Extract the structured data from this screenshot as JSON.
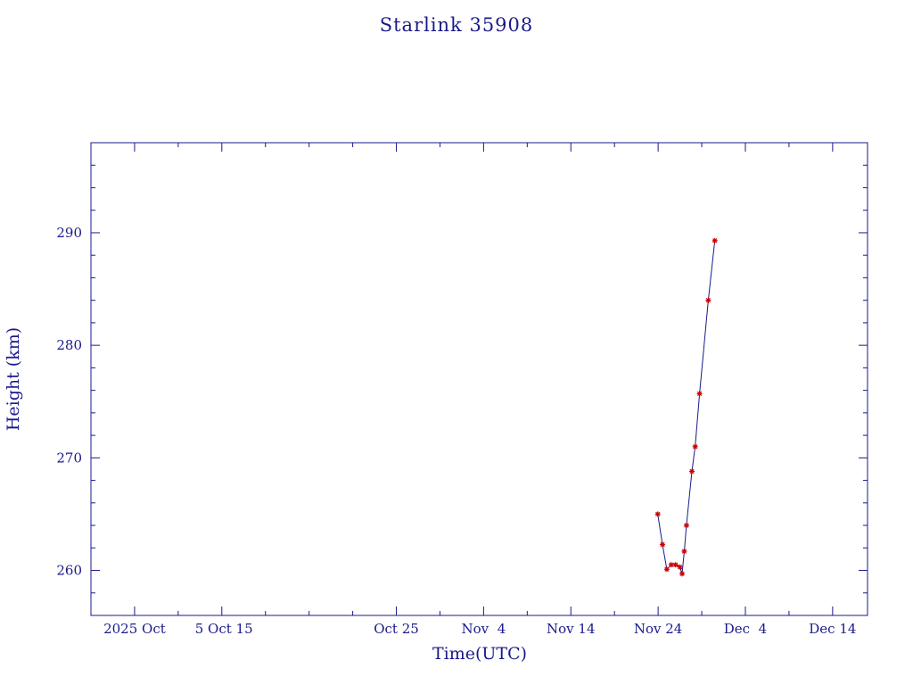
{
  "chart_data": {
    "type": "line",
    "title": "Starlink 35908",
    "xlabel": "Time(UTC)",
    "ylabel": "Height (km)",
    "x_ticks": [
      {
        "date": "2025-09-25",
        "label": "2025 Oct"
      },
      {
        "date": "2025-10-05",
        "label": " 5 Oct 15"
      },
      {
        "date": "2025-10-25",
        "label": "Oct 25"
      },
      {
        "date": "2025-11-04",
        "label": "Nov  4"
      },
      {
        "date": "2025-11-14",
        "label": "Nov 14"
      },
      {
        "date": "2025-11-24",
        "label": "Nov 24"
      },
      {
        "date": "2025-12-04",
        "label": "Dec  4"
      },
      {
        "date": "2025-12-14",
        "label": "Dec 14"
      }
    ],
    "y_ticks": [
      260,
      270,
      280,
      290
    ],
    "xlim": [
      "2025-09-20",
      "2025-12-18"
    ],
    "ylim": [
      256,
      298
    ],
    "grid": false,
    "series": [
      {
        "color": "#cc0000",
        "line_color": "#1a1a8c",
        "marker": "asterisk",
        "points": [
          {
            "x": "2025-11-23T23:00",
            "y": 265.0
          },
          {
            "x": "2025-11-24T12:00",
            "y": 262.3
          },
          {
            "x": "2025-11-25T00:00",
            "y": 260.1
          },
          {
            "x": "2025-11-25T12:00",
            "y": 260.5
          },
          {
            "x": "2025-11-26T00:00",
            "y": 260.5
          },
          {
            "x": "2025-11-26T12:00",
            "y": 260.3
          },
          {
            "x": "2025-11-26T18:00",
            "y": 259.7
          },
          {
            "x": "2025-11-27T00:00",
            "y": 261.7
          },
          {
            "x": "2025-11-27T06:00",
            "y": 264.0
          },
          {
            "x": "2025-11-27T21:00",
            "y": 268.8
          },
          {
            "x": "2025-11-28T06:00",
            "y": 271.0
          },
          {
            "x": "2025-11-28T18:00",
            "y": 275.7
          },
          {
            "x": "2025-11-29T18:00",
            "y": 284.0
          },
          {
            "x": "2025-11-30T12:00",
            "y": 289.3
          }
        ]
      }
    ]
  }
}
